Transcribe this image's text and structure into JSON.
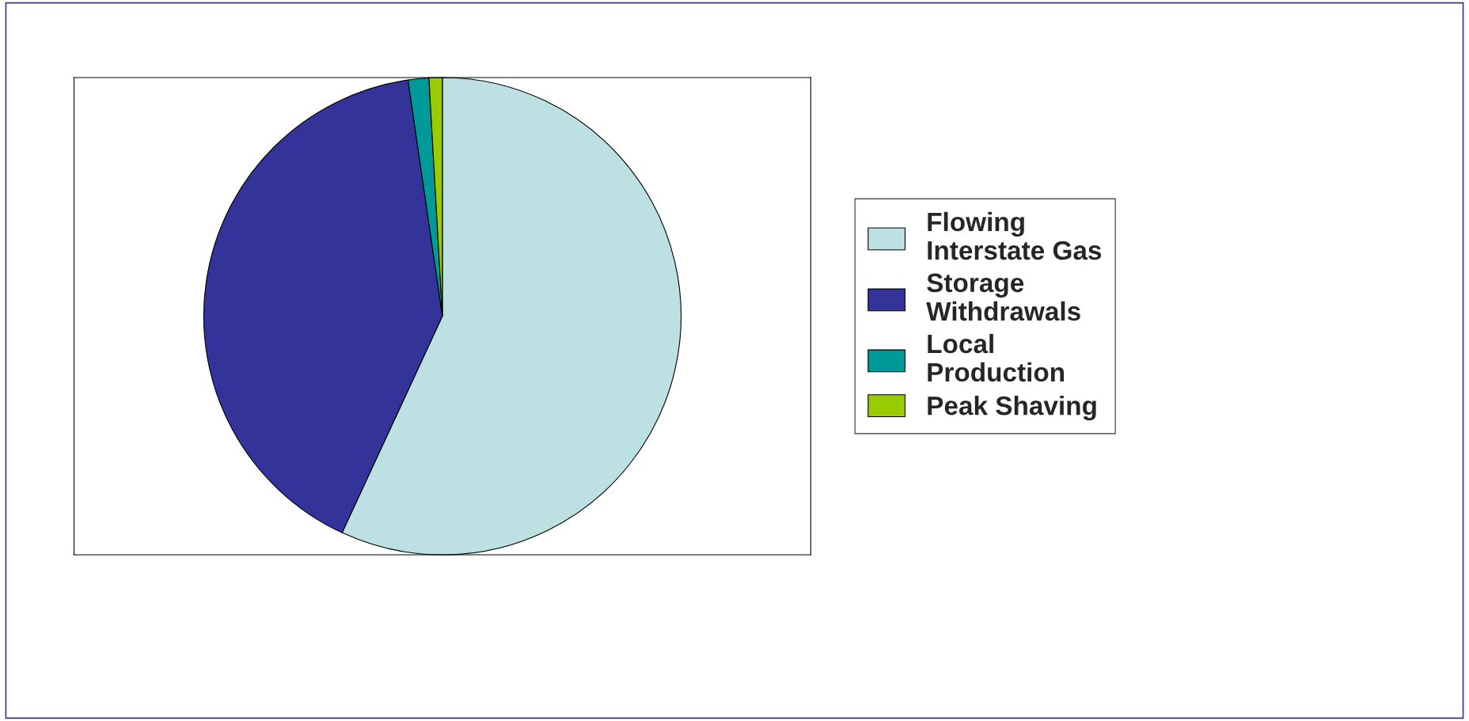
{
  "chart_data": {
    "type": "pie",
    "categories": [
      "Flowing Interstate Gas",
      "Storage Withdrawals",
      "Local Production",
      "Peak Shaving"
    ],
    "values": [
      56.9,
      40.8,
      1.4,
      0.9
    ],
    "colors": [
      "#bde0e3",
      "#333399",
      "#009999",
      "#99cc00"
    ],
    "legend": "right"
  }
}
